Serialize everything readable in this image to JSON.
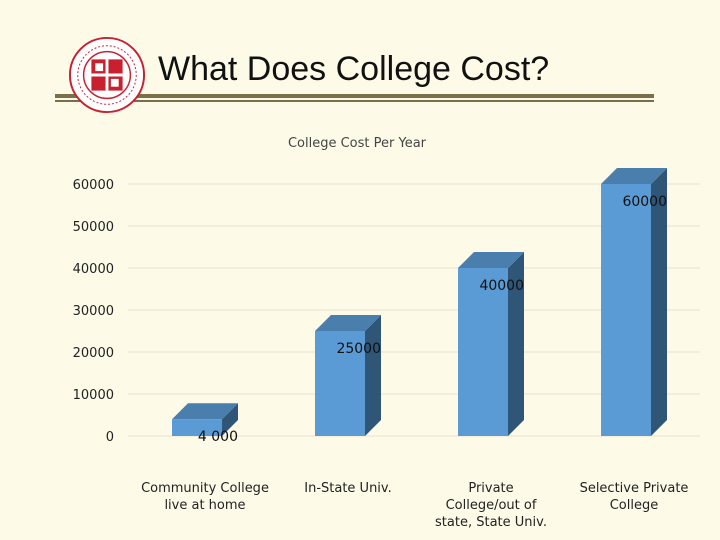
{
  "slide": {
    "title": "What Does College Cost?"
  },
  "colors": {
    "bar_front": "#5b9bd5",
    "bar_side": "#2f5577",
    "bar_top": "#4a7eac",
    "background": "#fdfbe8",
    "rule": "#7a6f4a",
    "seal_red": "#c8202f"
  },
  "logo": {
    "name": "university-seal",
    "icon": "seal-icon"
  },
  "chart_data": {
    "type": "bar",
    "title": "College Cost Per Year",
    "categories": [
      [
        "Community College",
        "live at home"
      ],
      [
        "In-State Univ."
      ],
      [
        "Private",
        "College/out of",
        "state, State Univ."
      ],
      [
        "Selective Private",
        "College"
      ]
    ],
    "values": [
      4000,
      25000,
      40000,
      60000
    ],
    "data_labels": [
      "4 000",
      "25000",
      "40000",
      "60000"
    ],
    "ylim": [
      0,
      60000
    ],
    "yticks": [
      0,
      10000,
      20000,
      30000,
      40000,
      50000,
      60000
    ],
    "grid": true,
    "three_d": true
  }
}
